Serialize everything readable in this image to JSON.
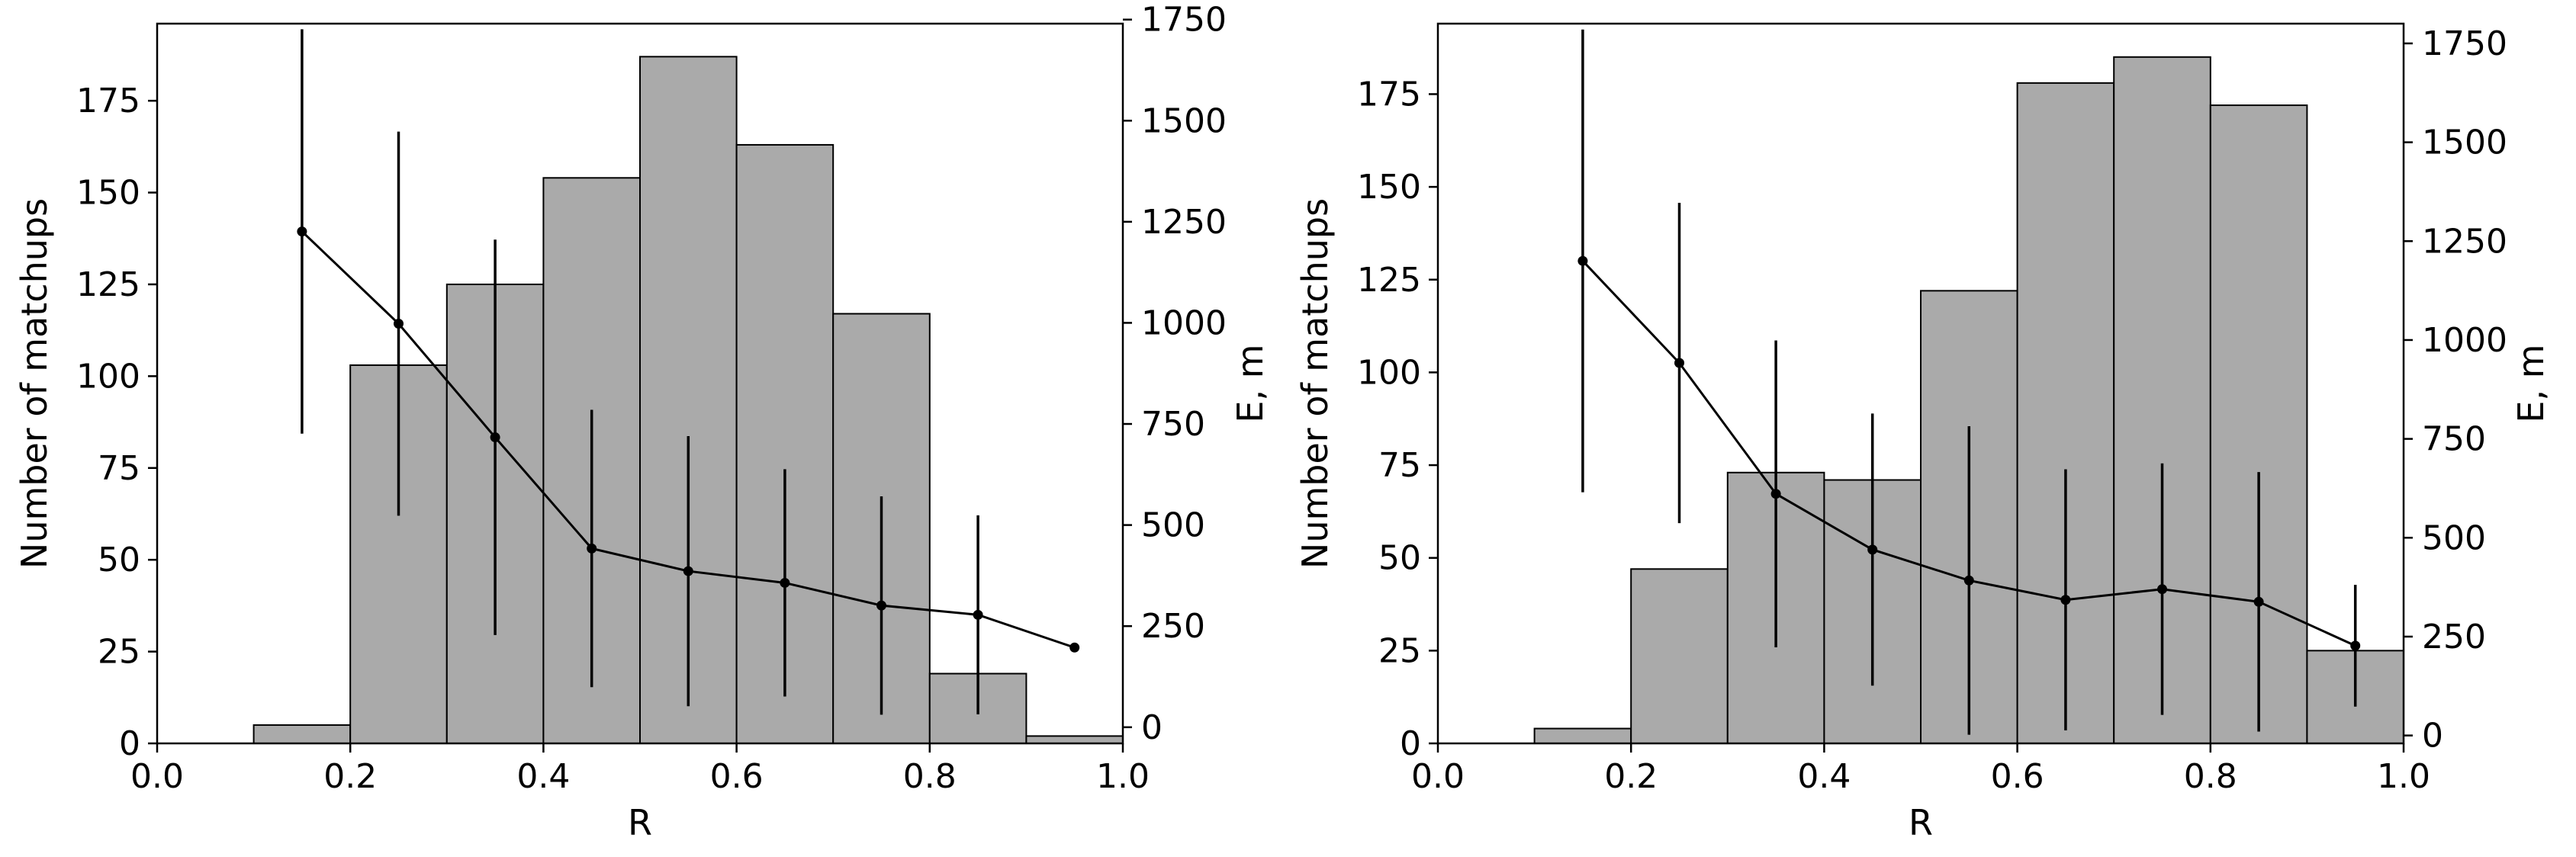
{
  "chart_data": [
    {
      "type": "bar",
      "subtype": "histogram-with-errorbar-line",
      "title": "",
      "xlabel": "R",
      "ylabel": "Number of matchups",
      "y2label": "E, m",
      "xlim": [
        0.0,
        1.0
      ],
      "ylim": [
        0,
        196
      ],
      "y2lim": [
        -40,
        1740
      ],
      "grid": false,
      "legend": "none",
      "x_ticks": [
        "0.0",
        "0.2",
        "0.4",
        "0.6",
        "0.8",
        "1.0"
      ],
      "y_ticks": [
        "0",
        "25",
        "50",
        "75",
        "100",
        "125",
        "150",
        "175"
      ],
      "y2_ticks": [
        "0",
        "250",
        "500",
        "750",
        "1000",
        "1250",
        "1500",
        "1750"
      ],
      "bins": [
        0.0,
        0.1,
        0.2,
        0.3,
        0.4,
        0.5,
        0.6,
        0.7,
        0.8,
        0.9,
        1.0
      ],
      "counts": [
        0,
        5,
        103,
        125,
        154,
        187,
        163,
        117,
        19,
        2
      ],
      "bar_color": "#aaaaaa",
      "edge_color": "#000000",
      "error_series": {
        "x": [
          0.15,
          0.25,
          0.35,
          0.45,
          0.55,
          0.65,
          0.75,
          0.85,
          0.95
        ],
        "y": [
          1226,
          998,
          717,
          442,
          386,
          357,
          301,
          278,
          197
        ],
        "yerr": [
          500,
          475,
          489,
          343,
          334,
          281,
          270,
          246,
          0
        ],
        "color": "#000000"
      }
    },
    {
      "type": "bar",
      "subtype": "histogram-with-errorbar-line",
      "title": "",
      "xlabel": "R",
      "ylabel": "Number of matchups",
      "y2label": "E, m",
      "xlim": [
        0.0,
        1.0
      ],
      "ylim": [
        0,
        194
      ],
      "y2lim": [
        -20,
        1800
      ],
      "grid": false,
      "legend": "none",
      "x_ticks": [
        "0.0",
        "0.2",
        "0.4",
        "0.6",
        "0.8",
        "1.0"
      ],
      "y_ticks": [
        "0",
        "25",
        "50",
        "75",
        "100",
        "125",
        "150",
        "175"
      ],
      "y2_ticks": [
        "0",
        "250",
        "500",
        "750",
        "1000",
        "1250",
        "1500",
        "1750"
      ],
      "bins": [
        0.0,
        0.1,
        0.2,
        0.3,
        0.4,
        0.5,
        0.6,
        0.7,
        0.8,
        0.9,
        1.0
      ],
      "counts": [
        0,
        4,
        47,
        73,
        71,
        122,
        178,
        185,
        172,
        25
      ],
      "bar_color": "#aaaaaa",
      "edge_color": "#000000",
      "error_series": {
        "x": [
          0.15,
          0.25,
          0.35,
          0.45,
          0.55,
          0.65,
          0.75,
          0.85,
          0.95
        ],
        "y": [
          1200,
          942,
          611,
          470,
          392,
          343,
          370,
          338,
          227
        ],
        "yerr": [
          585,
          405,
          388,
          344,
          390,
          330,
          318,
          328,
          154
        ],
        "color": "#000000"
      }
    }
  ]
}
